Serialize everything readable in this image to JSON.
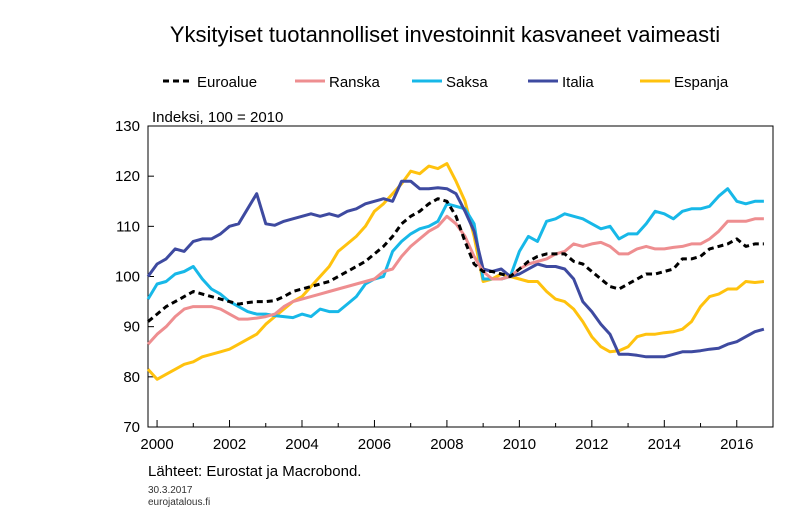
{
  "chart_data": {
    "type": "line",
    "title": "Yksityiset tuotannolliset investoinnit kasvaneet vaimeasti",
    "ylabel": "Indeksi, 100 = 2010",
    "xlim": [
      1999.75,
      2017.0
    ],
    "ylim": [
      70,
      130
    ],
    "yticks": [
      70,
      80,
      90,
      100,
      110,
      120,
      130
    ],
    "xticks": [
      2000,
      2002,
      2004,
      2006,
      2008,
      2010,
      2012,
      2014,
      2016
    ],
    "grid": false,
    "legend_position": "top",
    "series": [
      {
        "name": "Euroalue",
        "color": "#000000",
        "dashed": true,
        "x": [
          1999.75,
          2000.0,
          2000.25,
          2000.5,
          2000.75,
          2001.0,
          2001.25,
          2001.5,
          2001.75,
          2002.0,
          2002.25,
          2002.5,
          2002.75,
          2003.0,
          2003.25,
          2003.5,
          2003.75,
          2004.0,
          2004.25,
          2004.5,
          2004.75,
          2005.0,
          2005.25,
          2005.5,
          2005.75,
          2006.0,
          2006.25,
          2006.5,
          2006.75,
          2007.0,
          2007.25,
          2007.5,
          2007.75,
          2008.0,
          2008.25,
          2008.5,
          2008.75,
          2009.0,
          2009.25,
          2009.5,
          2009.75,
          2010.0,
          2010.25,
          2010.5,
          2010.75,
          2011.0,
          2011.25,
          2011.5,
          2011.75,
          2012.0,
          2012.25,
          2012.5,
          2012.75,
          2013.0,
          2013.25,
          2013.5,
          2013.75,
          2014.0,
          2014.25,
          2014.5,
          2014.75,
          2015.0,
          2015.25,
          2015.5,
          2015.75,
          2016.0,
          2016.25,
          2016.5,
          2016.75
        ],
        "y": [
          91.0,
          92.5,
          94.0,
          95.0,
          96.0,
          97.0,
          96.5,
          96.0,
          95.5,
          95.0,
          94.5,
          94.8,
          95.0,
          95.0,
          95.2,
          96.0,
          97.0,
          97.5,
          98.0,
          98.5,
          99.0,
          100.0,
          101.0,
          102.0,
          103.0,
          104.5,
          106.0,
          108.0,
          110.5,
          112.0,
          113.0,
          114.5,
          115.5,
          115.0,
          112.0,
          107.0,
          102.5,
          101.0,
          101.0,
          100.5,
          100.0,
          101.5,
          103.0,
          104.0,
          104.5,
          104.5,
          104.5,
          103.0,
          102.5,
          101.0,
          99.5,
          98.0,
          97.5,
          98.5,
          99.5,
          100.5,
          100.5,
          101.0,
          101.5,
          103.5,
          103.5,
          104.0,
          105.5,
          106.0,
          106.5,
          107.5,
          106.0,
          106.5,
          106.5
        ]
      },
      {
        "name": "Ranska",
        "color": "#EE8E90",
        "dashed": false,
        "x": [
          1999.75,
          2000.0,
          2000.25,
          2000.5,
          2000.75,
          2001.0,
          2001.25,
          2001.5,
          2001.75,
          2002.0,
          2002.25,
          2002.5,
          2002.75,
          2003.0,
          2003.25,
          2003.5,
          2003.75,
          2004.0,
          2004.25,
          2004.5,
          2004.75,
          2005.0,
          2005.25,
          2005.5,
          2005.75,
          2006.0,
          2006.25,
          2006.5,
          2006.75,
          2007.0,
          2007.25,
          2007.5,
          2007.75,
          2008.0,
          2008.25,
          2008.5,
          2008.75,
          2009.0,
          2009.25,
          2009.5,
          2009.75,
          2010.0,
          2010.25,
          2010.5,
          2010.75,
          2011.0,
          2011.25,
          2011.5,
          2011.75,
          2012.0,
          2012.25,
          2012.5,
          2012.75,
          2013.0,
          2013.25,
          2013.5,
          2013.75,
          2014.0,
          2014.25,
          2014.5,
          2014.75,
          2015.0,
          2015.25,
          2015.5,
          2015.75,
          2016.0,
          2016.25,
          2016.5,
          2016.75
        ],
        "y": [
          86.5,
          88.5,
          90.0,
          92.0,
          93.5,
          94.0,
          94.0,
          94.0,
          93.5,
          92.5,
          91.5,
          91.5,
          91.7,
          92.0,
          92.5,
          94.0,
          95.0,
          95.5,
          96.0,
          96.5,
          97.0,
          97.5,
          98.0,
          98.5,
          99.0,
          99.5,
          101.0,
          101.5,
          104.0,
          106.0,
          107.5,
          109.0,
          110.0,
          112.0,
          110.5,
          108.0,
          104.0,
          101.0,
          99.5,
          99.5,
          100.0,
          101.5,
          102.5,
          103.0,
          103.5,
          104.5,
          105.0,
          106.5,
          106.0,
          106.5,
          106.8,
          106.0,
          104.5,
          104.5,
          105.5,
          106.0,
          105.5,
          105.5,
          105.8,
          106.0,
          106.5,
          106.5,
          107.5,
          109.0,
          111.0,
          111.0,
          111.0,
          111.5,
          111.5
        ]
      },
      {
        "name": "Saksa",
        "color": "#17B8E8",
        "dashed": false,
        "x": [
          1999.75,
          2000.0,
          2000.25,
          2000.5,
          2000.75,
          2001.0,
          2001.25,
          2001.5,
          2001.75,
          2002.0,
          2002.25,
          2002.5,
          2002.75,
          2003.0,
          2003.25,
          2003.5,
          2003.75,
          2004.0,
          2004.25,
          2004.5,
          2004.75,
          2005.0,
          2005.25,
          2005.5,
          2005.75,
          2006.0,
          2006.25,
          2006.5,
          2006.75,
          2007.0,
          2007.25,
          2007.5,
          2007.75,
          2008.0,
          2008.25,
          2008.5,
          2008.75,
          2009.0,
          2009.25,
          2009.5,
          2009.75,
          2010.0,
          2010.25,
          2010.5,
          2010.75,
          2011.0,
          2011.25,
          2011.5,
          2011.75,
          2012.0,
          2012.25,
          2012.5,
          2012.75,
          2013.0,
          2013.25,
          2013.5,
          2013.75,
          2014.0,
          2014.25,
          2014.5,
          2014.75,
          2015.0,
          2015.25,
          2015.5,
          2015.75,
          2016.0,
          2016.25,
          2016.5,
          2016.75
        ],
        "y": [
          95.5,
          98.5,
          99.0,
          100.5,
          101.0,
          102.0,
          99.5,
          97.5,
          96.5,
          95.0,
          94.0,
          93.0,
          92.5,
          92.5,
          92.2,
          92.0,
          91.8,
          92.5,
          92.0,
          93.5,
          93.0,
          93.0,
          94.5,
          96.0,
          98.5,
          99.5,
          100.0,
          105.0,
          107.0,
          108.5,
          109.5,
          110.0,
          111.0,
          114.5,
          114.0,
          113.5,
          110.5,
          99.5,
          99.5,
          99.5,
          100.0,
          105.0,
          108.0,
          107.0,
          111.0,
          111.5,
          112.5,
          112.0,
          111.5,
          110.5,
          109.5,
          110.0,
          107.5,
          108.5,
          108.5,
          110.5,
          113.0,
          112.5,
          111.5,
          113.0,
          113.5,
          113.5,
          114.0,
          116.0,
          117.5,
          115.0,
          114.5,
          115.0,
          115.0
        ]
      },
      {
        "name": "Italia",
        "color": "#3E4AA0",
        "dashed": false,
        "x": [
          1999.75,
          2000.0,
          2000.25,
          2000.5,
          2000.75,
          2001.0,
          2001.25,
          2001.5,
          2001.75,
          2002.0,
          2002.25,
          2002.5,
          2002.75,
          2003.0,
          2003.25,
          2003.5,
          2003.75,
          2004.0,
          2004.25,
          2004.5,
          2004.75,
          2005.0,
          2005.25,
          2005.5,
          2005.75,
          2006.0,
          2006.25,
          2006.5,
          2006.75,
          2007.0,
          2007.25,
          2007.5,
          2007.75,
          2008.0,
          2008.25,
          2008.5,
          2008.75,
          2009.0,
          2009.25,
          2009.5,
          2009.75,
          2010.0,
          2010.25,
          2010.5,
          2010.75,
          2011.0,
          2011.25,
          2011.5,
          2011.75,
          2012.0,
          2012.25,
          2012.5,
          2012.75,
          2013.0,
          2013.25,
          2013.5,
          2013.75,
          2014.0,
          2014.25,
          2014.5,
          2014.75,
          2015.0,
          2015.25,
          2015.5,
          2015.75,
          2016.0,
          2016.25,
          2016.5,
          2016.75
        ],
        "y": [
          100.0,
          102.5,
          103.5,
          105.5,
          105.0,
          107.0,
          107.5,
          107.5,
          108.5,
          110.0,
          110.5,
          113.5,
          116.5,
          110.5,
          110.2,
          111.0,
          111.5,
          112.0,
          112.5,
          112.0,
          112.5,
          112.0,
          113.0,
          113.5,
          114.5,
          115.0,
          115.5,
          115.0,
          119.0,
          119.0,
          117.5,
          117.5,
          117.7,
          117.5,
          116.5,
          113.0,
          109.0,
          101.5,
          101.0,
          101.5,
          100.0,
          100.5,
          101.5,
          102.5,
          102.0,
          102.0,
          101.5,
          99.5,
          95.0,
          93.0,
          90.5,
          88.5,
          84.5,
          84.5,
          84.3,
          84.0,
          84.0,
          84.0,
          84.5,
          85.0,
          85.0,
          85.2,
          85.5,
          85.7,
          86.5,
          87.0,
          88.0,
          89.0,
          89.5
        ]
      },
      {
        "name": "Espanja",
        "color": "#FFC20E",
        "dashed": false,
        "x": [
          1999.75,
          2000.0,
          2000.25,
          2000.5,
          2000.75,
          2001.0,
          2001.25,
          2001.5,
          2001.75,
          2002.0,
          2002.25,
          2002.5,
          2002.75,
          2003.0,
          2003.25,
          2003.5,
          2003.75,
          2004.0,
          2004.25,
          2004.5,
          2004.75,
          2005.0,
          2005.25,
          2005.5,
          2005.75,
          2006.0,
          2006.25,
          2006.5,
          2006.75,
          2007.0,
          2007.25,
          2007.5,
          2007.75,
          2008.0,
          2008.25,
          2008.5,
          2008.75,
          2009.0,
          2009.25,
          2009.5,
          2009.75,
          2010.0,
          2010.25,
          2010.5,
          2010.75,
          2011.0,
          2011.25,
          2011.5,
          2011.75,
          2012.0,
          2012.25,
          2012.5,
          2012.75,
          2013.0,
          2013.25,
          2013.5,
          2013.75,
          2014.0,
          2014.25,
          2014.5,
          2014.75,
          2015.0,
          2015.25,
          2015.5,
          2015.75,
          2016.0,
          2016.25,
          2016.5,
          2016.75
        ],
        "y": [
          81.5,
          79.5,
          80.5,
          81.5,
          82.5,
          83.0,
          84.0,
          84.5,
          85.0,
          85.5,
          86.5,
          87.5,
          88.5,
          90.5,
          92.0,
          93.5,
          95.0,
          96.0,
          98.0,
          100.0,
          102.0,
          105.0,
          106.5,
          108.0,
          110.0,
          113.0,
          114.5,
          116.5,
          118.5,
          121.0,
          120.5,
          122.0,
          121.5,
          122.5,
          119.0,
          115.0,
          108.0,
          99.0,
          99.5,
          100.5,
          100.0,
          99.5,
          99.0,
          99.0,
          97.0,
          95.5,
          95.0,
          93.5,
          91.0,
          88.0,
          86.0,
          85.0,
          85.2,
          86.0,
          88.0,
          88.5,
          88.5,
          88.8,
          89.0,
          89.5,
          91.0,
          94.0,
          96.0,
          96.5,
          97.5,
          97.5,
          99.0,
          98.8,
          99.0
        ]
      }
    ]
  },
  "source_text": "Lähteet: Eurostat ja Macrobond.",
  "date_text": "30.3.2017",
  "site_text": "eurojatalous.fi"
}
